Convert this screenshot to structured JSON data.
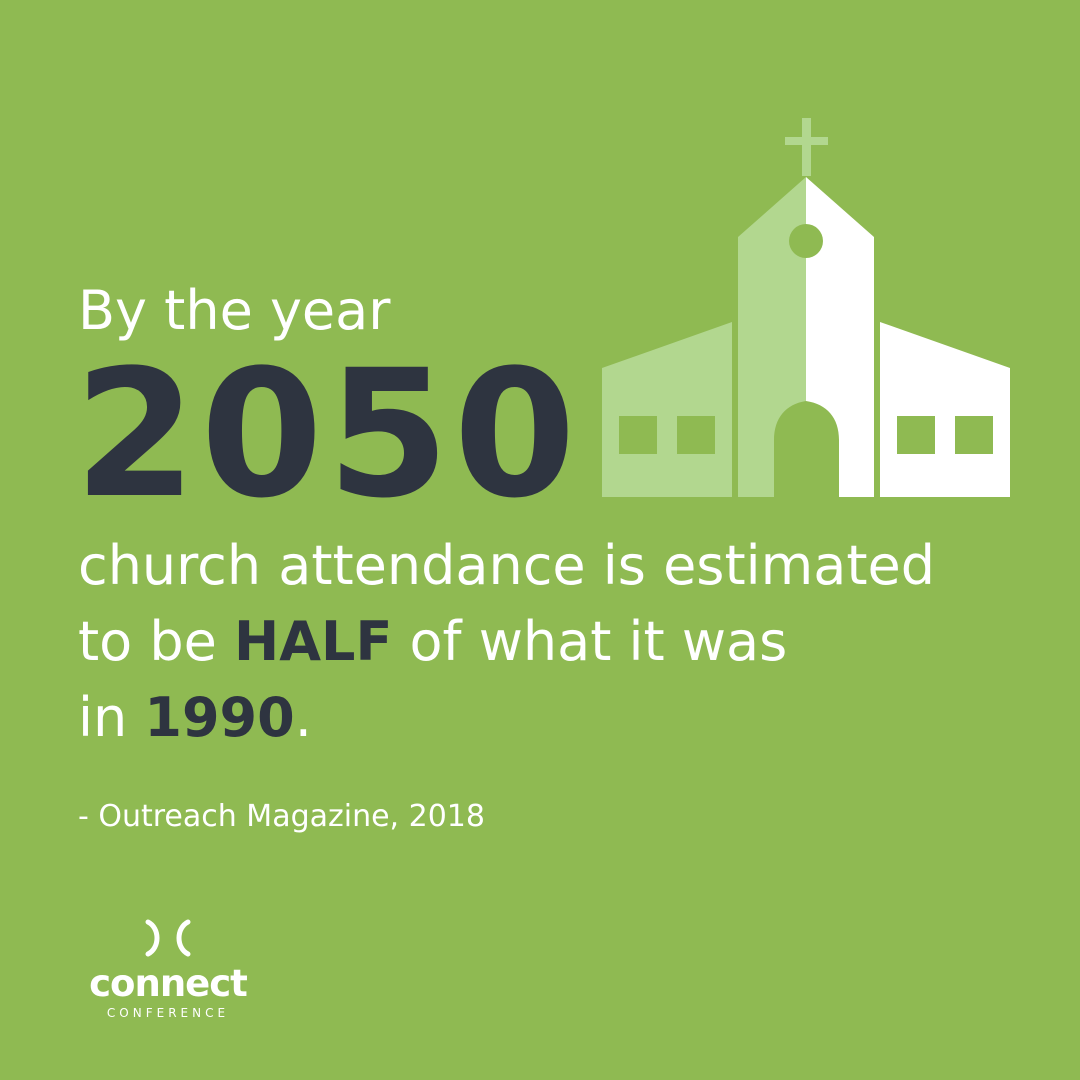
{
  "colors": {
    "background": "#8FBA52",
    "dark_text": "#2E3440",
    "light_text": "#FFFFFF",
    "church_light": "#B2D78F"
  },
  "headline": {
    "intro": "By the year",
    "year": "2050"
  },
  "statement": {
    "line1": "church attendance is estimated",
    "line2_pre": "to be ",
    "line2_em": "HALF",
    "line2_post": " of what it was",
    "line3_pre": "in ",
    "line3_em": "1990",
    "line3_post": "."
  },
  "source": "- Outreach Magazine, 2018",
  "logo": {
    "word": "connect",
    "sub": "CONFERENCE"
  },
  "icons": {
    "illustration": "church-icon",
    "logo_mark": "connect-mark-icon"
  }
}
